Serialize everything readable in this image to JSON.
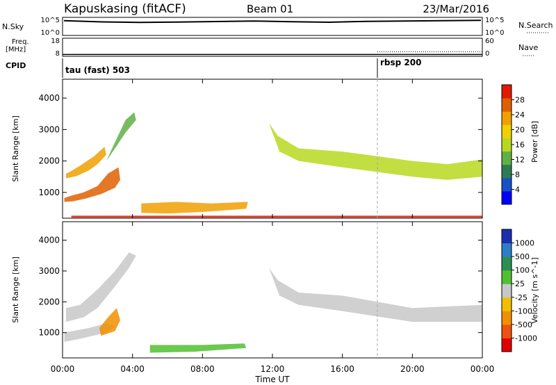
{
  "header": {
    "station": "Kapuskasing (fitACF)",
    "beam": "Beam 01",
    "date": "23/Mar/2016"
  },
  "chart_data": {
    "type": "heatmap",
    "title": "Kapuskasing (fitACF)",
    "subtitle": "Beam 01",
    "date": "23/Mar/2016",
    "xlabel": "Time UT",
    "time_ticks": [
      "00:00",
      "04:00",
      "08:00",
      "12:00",
      "16:00",
      "20:00",
      "00:00"
    ],
    "xlim_hours": [
      0,
      24
    ],
    "grid": false,
    "marker_time_hours": 18,
    "nsky_panel": {
      "left_label": "N.Sky",
      "left_ticks": [
        "10^5",
        "10^0"
      ],
      "right_ticks": [
        "10^5",
        "10^0"
      ],
      "right_label": "N.Search",
      "nsky_level_frac": [
        0.82,
        0.75,
        0.72,
        0.74,
        0.77,
        0.8,
        0.76,
        0.73,
        0.78,
        0.8,
        0.82,
        0.84
      ]
    },
    "freq_panel": {
      "left_label_1": "Freq.",
      "left_label_2": "[MHz]",
      "left_ticks": [
        "18",
        "8"
      ],
      "right_ticks": [
        "60",
        "0"
      ],
      "right_label": "Nave",
      "freq_mhz_level": 9,
      "nave_after_marker": 15
    },
    "cpid_panel": {
      "label": "CPID",
      "programs": [
        {
          "name": "tau (fast) 503",
          "start_hours": 0
        },
        {
          "name": "rbsp 200",
          "start_hours": 18
        }
      ]
    },
    "power_panel": {
      "ylabel": "Slant Range [km]",
      "yticks": [
        1000,
        2000,
        3000,
        4000
      ],
      "ylim_km": [
        180,
        4600
      ],
      "colorbar_label": "Power [dB]",
      "colorbar_ticks": [
        "4",
        "8",
        "12",
        "16",
        "20",
        "24",
        "28"
      ],
      "colorbar_colors": [
        "#0000ff",
        "#1850c8",
        "#2f7a55",
        "#5fb045",
        "#b8d820",
        "#f0d000",
        "#f0a000",
        "#e06000",
        "#e01a00"
      ],
      "regions": [
        {
          "name": "morning-lower-band",
          "points": [
            [
              0.1,
              700
            ],
            [
              0.6,
              720
            ],
            [
              1.3,
              800
            ],
            [
              2.2,
              950
            ],
            [
              3.0,
              1150
            ],
            [
              3.3,
              1400
            ],
            [
              3.2,
              1800
            ],
            [
              2.6,
              1600
            ],
            [
              2.0,
              1200
            ],
            [
              1.2,
              1000
            ],
            [
              0.4,
              880
            ],
            [
              0.1,
              820
            ]
          ],
          "level": 0.88
        },
        {
          "name": "morning-upper-band",
          "points": [
            [
              0.2,
              1450
            ],
            [
              0.8,
              1520
            ],
            [
              1.5,
              1700
            ],
            [
              2.0,
              1900
            ],
            [
              2.5,
              2200
            ],
            [
              2.4,
              2450
            ],
            [
              1.8,
              2150
            ],
            [
              1.0,
              1850
            ],
            [
              0.4,
              1650
            ],
            [
              0.2,
              1600
            ]
          ],
          "level": 0.7
        },
        {
          "name": "morning-high-range",
          "points": [
            [
              2.5,
              2000
            ],
            [
              3.0,
              2600
            ],
            [
              3.6,
              3300
            ],
            [
              4.1,
              3550
            ],
            [
              4.2,
              3300
            ],
            [
              3.6,
              2900
            ],
            [
              3.0,
              2400
            ]
          ],
          "level": 0.4
        },
        {
          "name": "midday-e-region",
          "points": [
            [
              4.5,
              350
            ],
            [
              6.0,
              330
            ],
            [
              8.0,
              380
            ],
            [
              10.5,
              480
            ],
            [
              10.6,
              700
            ],
            [
              8.5,
              650
            ],
            [
              6.5,
              700
            ],
            [
              4.5,
              650
            ]
          ],
          "level": 0.8
        },
        {
          "name": "afternoon-band",
          "points": [
            [
              11.8,
              3200
            ],
            [
              12.4,
              2300
            ],
            [
              13.5,
              2000
            ],
            [
              16.0,
              1800
            ],
            [
              20.0,
              1500
            ],
            [
              22.0,
              1400
            ],
            [
              24.0,
              1500
            ],
            [
              24.0,
              2050
            ],
            [
              22.0,
              1900
            ],
            [
              20.0,
              2000
            ],
            [
              16.0,
              2300
            ],
            [
              13.5,
              2400
            ],
            [
              12.3,
              2800
            ]
          ],
          "level": 0.55
        },
        {
          "name": "ground-scatter-floor",
          "points": [
            [
              0.5,
              200
            ],
            [
              24.0,
              200
            ],
            [
              24.0,
              260
            ],
            [
              0.5,
              260
            ]
          ],
          "level": 0.95
        }
      ]
    },
    "velocity_panel": {
      "ylabel": "Slant Range [km]",
      "yticks": [
        1000,
        2000,
        3000,
        4000
      ],
      "ylim_km": [
        180,
        4600
      ],
      "colorbar_label": "Velocity [m s^-1]",
      "colorbar_ticks": [
        "1000",
        "500",
        "100",
        "25",
        "-25",
        "-100",
        "-500",
        "-1000"
      ],
      "colorbar_colors": [
        "#1a2fb0",
        "#2f7dc8",
        "#2a9050",
        "#50c030",
        "#c8c8c8",
        "#f0c000",
        "#f09000",
        "#f05010",
        "#e00000"
      ],
      "regions": [
        {
          "name": "morning-grey-band",
          "points": [
            [
              0.2,
              1350
            ],
            [
              1.2,
              1500
            ],
            [
              2.0,
              1800
            ],
            [
              3.0,
              2500
            ],
            [
              3.8,
              3100
            ],
            [
              4.2,
              3500
            ],
            [
              3.8,
              3600
            ],
            [
              3.0,
              3000
            ],
            [
              2.0,
              2400
            ],
            [
              1.0,
              1900
            ],
            [
              0.2,
              1800
            ]
          ],
          "color": "#c8c8c8"
        },
        {
          "name": "morning-lower-grey",
          "points": [
            [
              0.1,
              700
            ],
            [
              1.0,
              800
            ],
            [
              2.5,
              1000
            ],
            [
              3.0,
              1200
            ],
            [
              2.5,
              1300
            ],
            [
              1.5,
              1150
            ],
            [
              0.1,
              1000
            ]
          ],
          "color": "#c8c8c8"
        },
        {
          "name": "morning-orange-patch",
          "points": [
            [
              2.2,
              900
            ],
            [
              3.0,
              1050
            ],
            [
              3.3,
              1400
            ],
            [
              3.1,
              1800
            ],
            [
              2.6,
              1500
            ],
            [
              2.1,
              1150
            ]
          ],
          "color": "#f09000"
        },
        {
          "name": "midday-green-e-region",
          "points": [
            [
              5.0,
              350
            ],
            [
              7.5,
              380
            ],
            [
              10.5,
              500
            ],
            [
              10.4,
              650
            ],
            [
              8.0,
              600
            ],
            [
              5.0,
              600
            ]
          ],
          "color": "#50c030"
        },
        {
          "name": "afternoon-grey-band",
          "points": [
            [
              11.8,
              3100
            ],
            [
              12.4,
              2200
            ],
            [
              13.5,
              1900
            ],
            [
              16.0,
              1700
            ],
            [
              20.0,
              1350
            ],
            [
              24.0,
              1350
            ],
            [
              24.0,
              1900
            ],
            [
              20.0,
              1800
            ],
            [
              16.0,
              2200
            ],
            [
              13.5,
              2300
            ],
            [
              12.3,
              2700
            ]
          ],
          "color": "#c8c8c8"
        }
      ]
    }
  }
}
